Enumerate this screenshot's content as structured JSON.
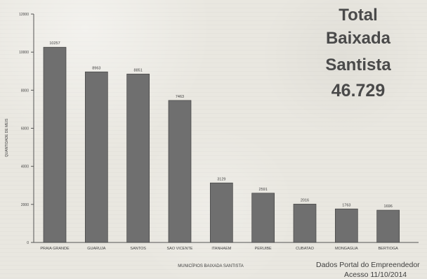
{
  "chart_data": {
    "type": "bar",
    "categories": [
      "PRAIA GRANDE",
      "GUARUJA",
      "SANTOS",
      "SAO VICENTE",
      "ITANHAEM",
      "PERUIBE",
      "CUBATAO",
      "MONGAGUA",
      "BERTIOGA"
    ],
    "values": [
      10257,
      8963,
      8851,
      7463,
      3129,
      2591,
      2016,
      1763,
      1696
    ],
    "data_labels": [
      "10257",
      "8963",
      "8851",
      "7463",
      "3129",
      "2591",
      "2016",
      "1763",
      "1696"
    ],
    "xlabel": "MUNICÍPIOS BAIXADA SANTISTA",
    "ylabel": "QUANTIDADE DE MEIS",
    "ylim": [
      0,
      12000
    ],
    "yticks": [
      0,
      2000,
      4000,
      6000,
      8000,
      10000,
      12000
    ],
    "grid": false,
    "legend": "none"
  },
  "total": {
    "line1": "Total",
    "line2": "Baixada",
    "line3": "Santista",
    "line4": "46.729"
  },
  "source": {
    "line1": "Dados Portal do Empreendedor",
    "line2": "Acesso 11/10/2014"
  },
  "colors": {
    "bar_fill": "#6f6f6f",
    "bar_stroke": "#444444",
    "text": "#3f3f3f",
    "background": "#e9e7e0",
    "total_text": "#4a4a4a"
  }
}
